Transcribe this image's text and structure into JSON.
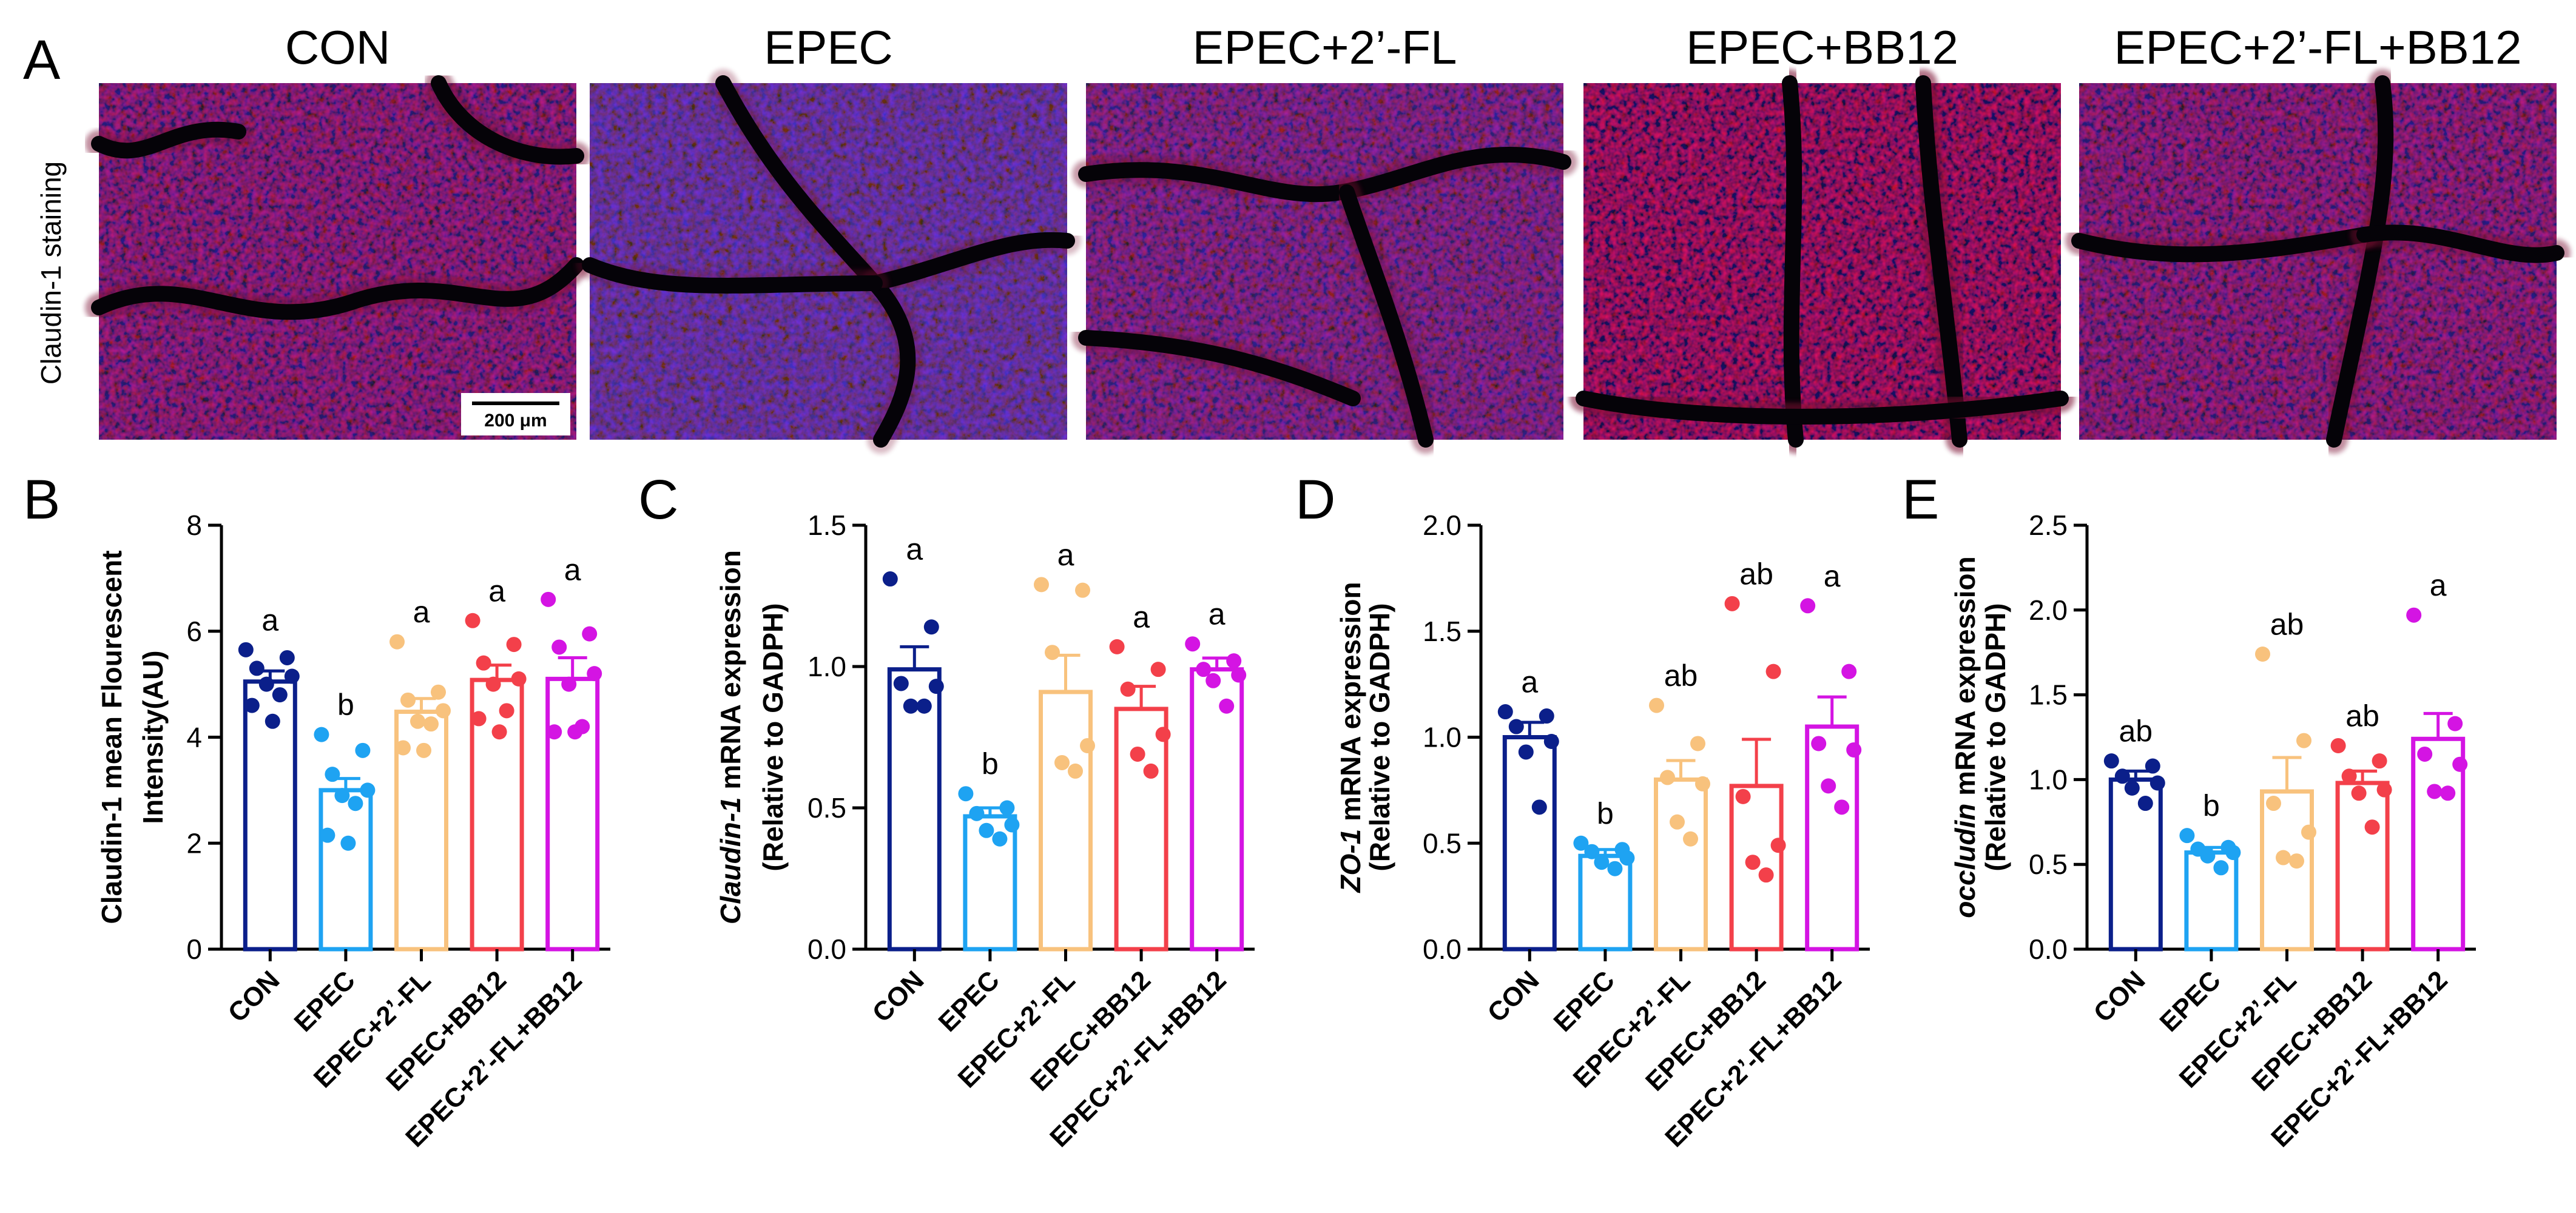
{
  "figure": {
    "panel_letters": [
      "A",
      "B",
      "C",
      "D",
      "E"
    ],
    "staining_label": "Claudin-1 staining",
    "scale_bar": "200 μm",
    "groups": [
      "CON",
      "EPEC",
      "EPEC+2’-FL",
      "EPEC+BB12",
      "EPEC+2’-FL+BB12"
    ],
    "group_colors": [
      "#0b1f8a",
      "#1ea3f2",
      "#f8c27d",
      "#f3404a",
      "#d414e3"
    ]
  },
  "chart_data": [
    {
      "type": "bar",
      "panel": "B",
      "ylabel_lines": [
        [
          {
            "t": "Claudin-1 mean Flourescent",
            "i": false
          }
        ],
        [
          {
            "t": "Intensity(AU)",
            "i": false
          }
        ]
      ],
      "categories": [
        "CON",
        "EPEC",
        "EPEC+2’-FL",
        "EPEC+BB12",
        "EPEC+2’-FL+BB12"
      ],
      "values": [
        5.05,
        3.0,
        4.48,
        5.08,
        5.1
      ],
      "sem": [
        0.2,
        0.22,
        0.25,
        0.28,
        0.4
      ],
      "points": [
        [
          5.65,
          5.5,
          5.3,
          5.15,
          5.0,
          4.8,
          4.6,
          4.3
        ],
        [
          4.05,
          3.75,
          3.3,
          3.0,
          2.9,
          2.75,
          2.15,
          2.0
        ],
        [
          5.8,
          4.85,
          4.7,
          4.5,
          4.3,
          4.25,
          3.8,
          3.75
        ],
        [
          6.2,
          5.75,
          5.4,
          5.1,
          5.0,
          4.5,
          4.35,
          4.1
        ],
        [
          6.6,
          5.95,
          5.7,
          5.2,
          5.0,
          4.2,
          4.1,
          4.1
        ]
      ],
      "letters": [
        "a",
        "b",
        "a",
        "a",
        "a"
      ],
      "ylim": [
        0,
        8
      ],
      "yticks": [
        0,
        2,
        4,
        6,
        8
      ],
      "tick_labels": [
        "0",
        "2",
        "4",
        "6",
        "8"
      ]
    },
    {
      "type": "bar",
      "panel": "C",
      "ylabel_lines": [
        [
          {
            "t": "Claudin-1",
            "i": true
          },
          {
            "t": " mRNA expression",
            "i": false
          }
        ],
        [
          {
            "t": "(Relative to GADPH)",
            "i": false
          }
        ]
      ],
      "categories": [
        "CON",
        "EPEC",
        "EPEC+2’-FL",
        "EPEC+BB12",
        "EPEC+2’-FL+BB12"
      ],
      "values": [
        0.99,
        0.47,
        0.91,
        0.85,
        0.99
      ],
      "sem": [
        0.08,
        0.03,
        0.13,
        0.08,
        0.04
      ],
      "points": [
        [
          1.31,
          1.14,
          0.94,
          0.93,
          0.86,
          0.86
        ],
        [
          0.55,
          0.5,
          0.48,
          0.44,
          0.42,
          0.39
        ],
        [
          1.29,
          1.27,
          1.05,
          0.72,
          0.66,
          0.63
        ],
        [
          1.07,
          0.99,
          0.92,
          0.76,
          0.69,
          0.63
        ],
        [
          1.08,
          1.02,
          0.99,
          0.97,
          0.95,
          0.86
        ]
      ],
      "letters": [
        "a",
        "b",
        "a",
        "a",
        "a"
      ],
      "ylim": [
        0,
        1.5
      ],
      "yticks": [
        0,
        0.5,
        1.0,
        1.5
      ],
      "tick_labels": [
        "0.0",
        "0.5",
        "1.0",
        "1.5"
      ]
    },
    {
      "type": "bar",
      "panel": "D",
      "ylabel_lines": [
        [
          {
            "t": "ZO-1",
            "i": true
          },
          {
            "t": " mRNA expression",
            "i": false
          }
        ],
        [
          {
            "t": "(Relative to GADPH)",
            "i": false
          }
        ]
      ],
      "categories": [
        "CON",
        "EPEC",
        "EPEC+2’-FL",
        "EPEC+BB12",
        "EPEC+2’-FL+BB12"
      ],
      "values": [
        1.0,
        0.44,
        0.8,
        0.77,
        1.05
      ],
      "sem": [
        0.07,
        0.03,
        0.09,
        0.22,
        0.14
      ],
      "points": [
        [
          1.12,
          1.1,
          1.05,
          0.98,
          0.93,
          0.67
        ],
        [
          0.5,
          0.47,
          0.46,
          0.43,
          0.41,
          0.38
        ],
        [
          1.15,
          0.97,
          0.81,
          0.78,
          0.6,
          0.52
        ],
        [
          1.63,
          1.31,
          0.72,
          0.49,
          0.41,
          0.35
        ],
        [
          1.62,
          1.31,
          0.97,
          0.94,
          0.77,
          0.67
        ]
      ],
      "letters": [
        "a",
        "b",
        "ab",
        "ab",
        "a"
      ],
      "ylim": [
        0,
        2.0
      ],
      "yticks": [
        0,
        0.5,
        1.0,
        1.5,
        2.0
      ],
      "tick_labels": [
        "0.0",
        "0.5",
        "1.0",
        "1.5",
        "2.0"
      ]
    },
    {
      "type": "bar",
      "panel": "E",
      "ylabel_lines": [
        [
          {
            "t": "occludin",
            "i": true
          },
          {
            "t": " mRNA expression",
            "i": false
          }
        ],
        [
          {
            "t": "(Relative to GADPH)",
            "i": false
          }
        ]
      ],
      "categories": [
        "CON",
        "EPEC",
        "EPEC+2’-FL",
        "EPEC+BB12",
        "EPEC+2’-FL+BB12"
      ],
      "values": [
        1.0,
        0.57,
        0.93,
        0.98,
        1.24
      ],
      "sem": [
        0.05,
        0.03,
        0.2,
        0.07,
        0.15
      ],
      "points": [
        [
          1.11,
          1.08,
          1.02,
          0.98,
          0.95,
          0.86
        ],
        [
          0.67,
          0.6,
          0.59,
          0.57,
          0.55,
          0.48
        ],
        [
          1.74,
          1.23,
          0.86,
          0.69,
          0.54,
          0.52
        ],
        [
          1.2,
          1.11,
          1.02,
          0.94,
          0.92,
          0.72
        ],
        [
          1.97,
          1.33,
          1.15,
          1.09,
          0.93,
          0.92
        ]
      ],
      "letters": [
        "ab",
        "b",
        "ab",
        "ab",
        "a"
      ],
      "ylim": [
        0,
        2.5
      ],
      "yticks": [
        0,
        0.5,
        1.0,
        1.5,
        2.0,
        2.5
      ],
      "tick_labels": [
        "0.0",
        "0.5",
        "1.0",
        "1.5",
        "2.0",
        "2.5"
      ]
    }
  ]
}
